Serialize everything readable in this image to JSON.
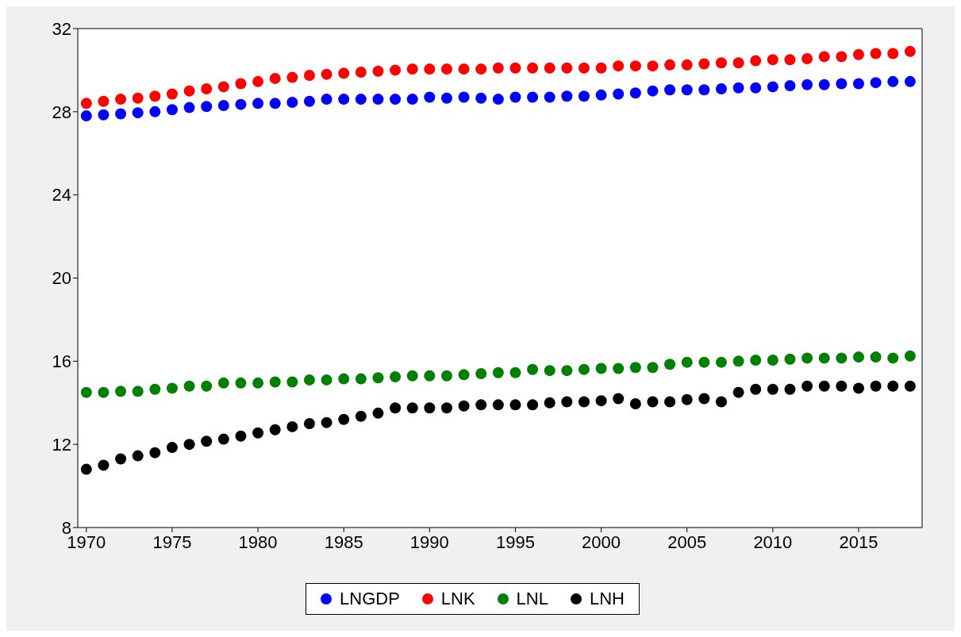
{
  "chart_data": {
    "type": "scatter",
    "x": [
      1970,
      1971,
      1972,
      1973,
      1974,
      1975,
      1976,
      1977,
      1978,
      1979,
      1980,
      1981,
      1982,
      1983,
      1984,
      1985,
      1986,
      1987,
      1988,
      1989,
      1990,
      1991,
      1992,
      1993,
      1994,
      1995,
      1996,
      1997,
      1998,
      1999,
      2000,
      2001,
      2002,
      2003,
      2004,
      2005,
      2006,
      2007,
      2008,
      2009,
      2010,
      2011,
      2012,
      2013,
      2014,
      2015,
      2016,
      2017,
      2018
    ],
    "series": [
      {
        "name": "LNGDP",
        "color": "#0000ff",
        "values": [
          27.8,
          27.85,
          27.9,
          27.95,
          28.0,
          28.1,
          28.2,
          28.25,
          28.3,
          28.35,
          28.4,
          28.4,
          28.45,
          28.5,
          28.6,
          28.6,
          28.6,
          28.6,
          28.6,
          28.6,
          28.7,
          28.65,
          28.7,
          28.65,
          28.6,
          28.7,
          28.7,
          28.7,
          28.75,
          28.75,
          28.8,
          28.85,
          28.9,
          29.0,
          29.05,
          29.05,
          29.05,
          29.1,
          29.15,
          29.15,
          29.2,
          29.25,
          29.3,
          29.3,
          29.35,
          29.35,
          29.4,
          29.45,
          29.45
        ]
      },
      {
        "name": "LNK",
        "color": "#ff0000",
        "values": [
          28.4,
          28.5,
          28.6,
          28.65,
          28.75,
          28.85,
          29.0,
          29.1,
          29.2,
          29.35,
          29.45,
          29.6,
          29.65,
          29.75,
          29.8,
          29.85,
          29.9,
          29.95,
          30.0,
          30.05,
          30.05,
          30.05,
          30.05,
          30.05,
          30.1,
          30.1,
          30.1,
          30.1,
          30.1,
          30.1,
          30.1,
          30.2,
          30.2,
          30.2,
          30.25,
          30.25,
          30.3,
          30.35,
          30.35,
          30.45,
          30.5,
          30.5,
          30.55,
          30.65,
          30.65,
          30.75,
          30.8,
          30.8,
          30.9
        ]
      },
      {
        "name": "LNL",
        "color": "#008000",
        "values": [
          14.5,
          14.5,
          14.55,
          14.55,
          14.65,
          14.7,
          14.8,
          14.8,
          14.95,
          14.95,
          14.95,
          15.0,
          15.0,
          15.1,
          15.1,
          15.15,
          15.15,
          15.2,
          15.25,
          15.3,
          15.3,
          15.3,
          15.35,
          15.4,
          15.45,
          15.45,
          15.6,
          15.55,
          15.55,
          15.6,
          15.65,
          15.65,
          15.7,
          15.7,
          15.85,
          15.95,
          15.95,
          15.95,
          16.0,
          16.05,
          16.05,
          16.1,
          16.15,
          16.15,
          16.15,
          16.2,
          16.2,
          16.15,
          16.25
        ]
      },
      {
        "name": "LNH",
        "color": "#000000",
        "values": [
          10.8,
          11.0,
          11.3,
          11.45,
          11.6,
          11.85,
          12.0,
          12.15,
          12.25,
          12.4,
          12.55,
          12.7,
          12.85,
          13.0,
          13.05,
          13.2,
          13.35,
          13.5,
          13.75,
          13.75,
          13.75,
          13.75,
          13.85,
          13.9,
          13.9,
          13.9,
          13.9,
          14.0,
          14.05,
          14.05,
          14.1,
          14.2,
          13.95,
          14.05,
          14.05,
          14.15,
          14.2,
          14.05,
          14.5,
          14.65,
          14.65,
          14.65,
          14.8,
          14.8,
          14.8,
          14.7,
          14.8,
          14.8,
          14.8
        ]
      }
    ],
    "xlim": [
      1969.5,
      2018.7
    ],
    "xticks": [
      1970,
      1975,
      1980,
      1985,
      1990,
      1995,
      2000,
      2005,
      2010,
      2015
    ],
    "ylim": [
      8,
      32
    ],
    "yticks": [
      8,
      12,
      16,
      20,
      24,
      28,
      32
    ],
    "grid": false,
    "legend": "bottom",
    "marker": "circle"
  }
}
